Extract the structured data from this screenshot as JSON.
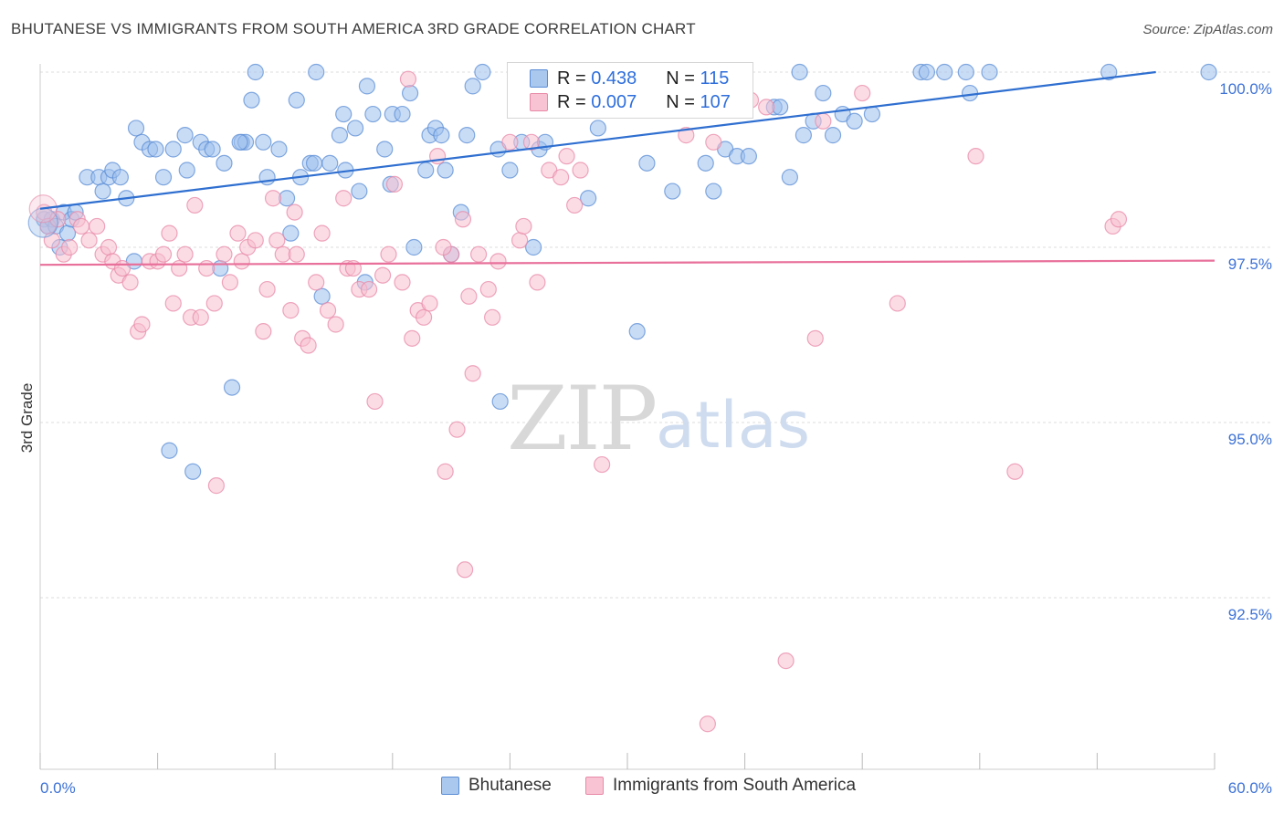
{
  "title": "BHUTANESE VS IMMIGRANTS FROM SOUTH AMERICA 3RD GRADE CORRELATION CHART",
  "source": "Source: ZipAtlas.com",
  "watermark": {
    "zip": "ZIP",
    "atlas": "atlas"
  },
  "legend": {
    "r_label": "R =",
    "n_label": "N =",
    "rows": [
      {
        "r": "0.438",
        "n": "115",
        "fill": "#aac7ee",
        "stroke": "#5b8ed6"
      },
      {
        "r": "0.007",
        "n": "107",
        "fill": "#f8c3d3",
        "stroke": "#e88aa8"
      }
    ]
  },
  "bottom_legend": [
    "Bhutanese",
    "Immigrants from South America"
  ],
  "colors": {
    "blue_fill": "#9dc0ec",
    "blue_stroke": "#5b8ed6",
    "blue_line": "#2f6fd0",
    "pink_fill": "#f7bfd0",
    "pink_stroke": "#e88aa8",
    "pink_line": "#e8709a",
    "tick_label": "#3d72d6",
    "grid": "#dddddd"
  },
  "chart_data": {
    "type": "scatter",
    "xlabel": "",
    "ylabel": "3rd Grade",
    "xlim": [
      0,
      60
    ],
    "ylim": [
      90.0,
      100.3
    ],
    "x_ticks": [
      {
        "v": 0,
        "label": "0.0%"
      },
      {
        "v": 60,
        "label": "60.0%"
      }
    ],
    "y_ticks": [
      {
        "v": 100,
        "label": "100.0%"
      },
      {
        "v": 97.5,
        "label": "97.5%"
      },
      {
        "v": 95,
        "label": "95.0%"
      },
      {
        "v": 92.5,
        "label": "92.5%"
      }
    ],
    "grid": true,
    "series": [
      {
        "name": "Bhutanese",
        "trend": {
          "x": [
            0,
            57
          ],
          "y": [
            98.05,
            100.0
          ]
        },
        "points": [
          [
            0.2,
            97.9
          ],
          [
            0.4,
            97.8
          ],
          [
            0.6,
            97.9
          ],
          [
            0.8,
            97.8
          ],
          [
            1.0,
            97.5
          ],
          [
            1.2,
            98.0
          ],
          [
            1.4,
            97.7
          ],
          [
            1.6,
            97.9
          ],
          [
            1.8,
            98.0
          ],
          [
            2.4,
            98.5
          ],
          [
            3.0,
            98.5
          ],
          [
            3.2,
            98.3
          ],
          [
            3.5,
            98.5
          ],
          [
            3.7,
            98.6
          ],
          [
            4.1,
            98.5
          ],
          [
            4.4,
            98.2
          ],
          [
            4.8,
            97.3
          ],
          [
            4.9,
            99.2
          ],
          [
            5.2,
            99.0
          ],
          [
            5.6,
            98.9
          ],
          [
            5.9,
            98.9
          ],
          [
            6.3,
            98.5
          ],
          [
            6.8,
            98.9
          ],
          [
            7.4,
            99.1
          ],
          [
            7.5,
            98.6
          ],
          [
            8.2,
            99.0
          ],
          [
            8.5,
            98.9
          ],
          [
            8.8,
            98.9
          ],
          [
            9.2,
            97.2
          ],
          [
            9.4,
            98.7
          ],
          [
            10.3,
            99.0
          ],
          [
            10.5,
            99.0
          ],
          [
            10.8,
            99.6
          ],
          [
            11.0,
            100.0
          ],
          [
            11.4,
            99.0
          ],
          [
            11.6,
            98.5
          ],
          [
            12.2,
            98.9
          ],
          [
            12.6,
            98.2
          ],
          [
            12.8,
            97.7
          ],
          [
            13.1,
            99.6
          ],
          [
            13.3,
            98.5
          ],
          [
            13.8,
            98.7
          ],
          [
            14.1,
            100.0
          ],
          [
            14.4,
            96.8
          ],
          [
            14.8,
            98.7
          ],
          [
            15.3,
            99.1
          ],
          [
            15.5,
            99.4
          ],
          [
            15.6,
            98.6
          ],
          [
            16.1,
            99.2
          ],
          [
            16.3,
            98.3
          ],
          [
            16.6,
            97.0
          ],
          [
            16.7,
            99.8
          ],
          [
            17.0,
            99.4
          ],
          [
            17.6,
            98.9
          ],
          [
            17.9,
            98.4
          ],
          [
            18.0,
            99.4
          ],
          [
            18.5,
            99.4
          ],
          [
            18.9,
            99.7
          ],
          [
            19.1,
            97.5
          ],
          [
            19.7,
            98.6
          ],
          [
            19.9,
            99.1
          ],
          [
            20.2,
            99.2
          ],
          [
            20.5,
            99.1
          ],
          [
            20.7,
            98.6
          ],
          [
            21.0,
            97.4
          ],
          [
            21.5,
            98.0
          ],
          [
            21.8,
            99.1
          ],
          [
            22.1,
            99.8
          ],
          [
            23.4,
            98.9
          ],
          [
            23.5,
            95.3
          ],
          [
            24.0,
            98.6
          ],
          [
            24.6,
            99.0
          ],
          [
            25.2,
            97.5
          ],
          [
            25.5,
            98.9
          ],
          [
            25.8,
            99.0
          ],
          [
            26.3,
            100.0
          ],
          [
            27.5,
            99.6
          ],
          [
            28.0,
            98.2
          ],
          [
            28.5,
            99.2
          ],
          [
            29.5,
            99.6
          ],
          [
            30.5,
            96.3
          ],
          [
            31.0,
            98.7
          ],
          [
            32.3,
            98.3
          ],
          [
            33.6,
            100.0
          ],
          [
            34.0,
            98.7
          ],
          [
            34.4,
            98.3
          ],
          [
            35.0,
            98.9
          ],
          [
            35.6,
            98.8
          ],
          [
            36.2,
            98.8
          ],
          [
            37.5,
            99.5
          ],
          [
            37.8,
            99.5
          ],
          [
            38.3,
            98.5
          ],
          [
            38.8,
            100.0
          ],
          [
            39.0,
            99.1
          ],
          [
            39.5,
            99.3
          ],
          [
            40.0,
            99.7
          ],
          [
            40.5,
            99.1
          ],
          [
            41.0,
            99.4
          ],
          [
            41.6,
            99.3
          ],
          [
            42.5,
            99.4
          ],
          [
            45.0,
            100.0
          ],
          [
            45.3,
            100.0
          ],
          [
            46.2,
            100.0
          ],
          [
            47.3,
            100.0
          ],
          [
            47.5,
            99.7
          ],
          [
            48.5,
            100.0
          ],
          [
            54.6,
            100.0
          ],
          [
            59.7,
            100.0
          ],
          [
            6.6,
            94.6
          ],
          [
            7.8,
            94.3
          ],
          [
            9.8,
            95.5
          ],
          [
            22.6,
            100.0
          ],
          [
            14.0,
            98.7
          ],
          [
            10.2,
            99.0
          ]
        ]
      },
      {
        "name": "Immigrants from South America",
        "trend": {
          "x": [
            0,
            60
          ],
          "y": [
            97.25,
            97.31
          ]
        },
        "points": [
          [
            0.2,
            98.0
          ],
          [
            0.4,
            97.8
          ],
          [
            0.6,
            97.6
          ],
          [
            0.9,
            97.9
          ],
          [
            1.2,
            97.4
          ],
          [
            1.5,
            97.5
          ],
          [
            1.9,
            97.9
          ],
          [
            2.1,
            97.8
          ],
          [
            2.5,
            97.6
          ],
          [
            2.9,
            97.8
          ],
          [
            3.2,
            97.4
          ],
          [
            3.5,
            97.5
          ],
          [
            3.7,
            97.3
          ],
          [
            4.0,
            97.1
          ],
          [
            4.2,
            97.2
          ],
          [
            4.6,
            97.0
          ],
          [
            5.0,
            96.3
          ],
          [
            5.2,
            96.4
          ],
          [
            5.6,
            97.3
          ],
          [
            6.0,
            97.3
          ],
          [
            6.3,
            97.4
          ],
          [
            6.6,
            97.7
          ],
          [
            6.8,
            96.7
          ],
          [
            7.1,
            97.2
          ],
          [
            7.4,
            97.4
          ],
          [
            7.7,
            96.5
          ],
          [
            7.9,
            98.1
          ],
          [
            8.2,
            96.5
          ],
          [
            8.5,
            97.2
          ],
          [
            8.9,
            96.7
          ],
          [
            9.0,
            94.1
          ],
          [
            9.4,
            97.4
          ],
          [
            9.7,
            97.0
          ],
          [
            10.1,
            97.7
          ],
          [
            10.3,
            97.3
          ],
          [
            10.6,
            97.5
          ],
          [
            11.0,
            97.6
          ],
          [
            11.4,
            96.3
          ],
          [
            11.6,
            96.9
          ],
          [
            11.9,
            98.2
          ],
          [
            12.1,
            97.6
          ],
          [
            12.4,
            97.4
          ],
          [
            12.8,
            96.6
          ],
          [
            13.1,
            97.4
          ],
          [
            13.4,
            96.2
          ],
          [
            13.7,
            96.1
          ],
          [
            14.1,
            97.0
          ],
          [
            14.4,
            97.7
          ],
          [
            14.7,
            96.6
          ],
          [
            15.1,
            96.4
          ],
          [
            15.5,
            98.2
          ],
          [
            15.7,
            97.2
          ],
          [
            16.0,
            97.2
          ],
          [
            16.3,
            96.9
          ],
          [
            16.8,
            96.9
          ],
          [
            17.1,
            95.3
          ],
          [
            17.5,
            97.1
          ],
          [
            17.8,
            97.4
          ],
          [
            18.1,
            98.4
          ],
          [
            18.5,
            97.0
          ],
          [
            18.8,
            99.9
          ],
          [
            19.0,
            96.2
          ],
          [
            19.3,
            96.6
          ],
          [
            19.6,
            96.5
          ],
          [
            19.9,
            96.7
          ],
          [
            20.3,
            98.8
          ],
          [
            20.7,
            94.3
          ],
          [
            21.0,
            97.4
          ],
          [
            21.3,
            94.9
          ],
          [
            21.6,
            97.9
          ],
          [
            21.7,
            92.9
          ],
          [
            21.9,
            96.8
          ],
          [
            22.1,
            95.7
          ],
          [
            22.4,
            97.4
          ],
          [
            22.9,
            96.9
          ],
          [
            23.1,
            96.5
          ],
          [
            23.4,
            97.3
          ],
          [
            24.0,
            99.0
          ],
          [
            24.5,
            97.6
          ],
          [
            24.7,
            97.8
          ],
          [
            25.1,
            99.0
          ],
          [
            25.4,
            97.0
          ],
          [
            26.0,
            98.6
          ],
          [
            26.6,
            98.5
          ],
          [
            26.9,
            98.8
          ],
          [
            27.3,
            98.1
          ],
          [
            27.6,
            98.6
          ],
          [
            28.7,
            94.4
          ],
          [
            30.0,
            99.7
          ],
          [
            31.1,
            99.8
          ],
          [
            32.3,
            99.6
          ],
          [
            33.0,
            99.1
          ],
          [
            34.4,
            99.0
          ],
          [
            36.3,
            99.6
          ],
          [
            37.1,
            99.5
          ],
          [
            38.1,
            91.6
          ],
          [
            39.6,
            96.2
          ],
          [
            40.0,
            99.3
          ],
          [
            42.0,
            99.7
          ],
          [
            43.8,
            96.7
          ],
          [
            47.8,
            98.8
          ],
          [
            49.8,
            94.3
          ],
          [
            54.8,
            97.8
          ],
          [
            55.1,
            97.9
          ],
          [
            34.1,
            90.7
          ],
          [
            13.0,
            98.0
          ],
          [
            20.6,
            97.5
          ]
        ]
      }
    ]
  }
}
